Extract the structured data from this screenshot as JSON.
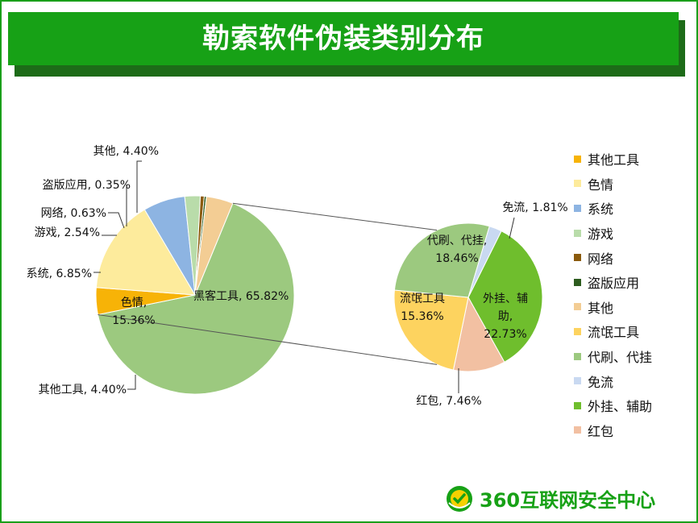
{
  "title": "勒索软件伪装类别分布",
  "brand": {
    "name": "360互联网安全中心",
    "logo_icon": "360-shield-logo-icon"
  },
  "chart_data": [
    {
      "type": "pie",
      "title": "",
      "slices": [
        {
          "name": "黑客工具",
          "value": 65.82,
          "label": "黑客工具, 65.82%",
          "color": "#9cc97f"
        },
        {
          "name": "其他工具",
          "value": 4.4,
          "label": "其他工具, 4.40%",
          "color": "#f7b307"
        },
        {
          "name": "色情",
          "value": 15.36,
          "label": "色情, 15.36%",
          "color": "#fdeb9c"
        },
        {
          "name": "系统",
          "value": 6.85,
          "label": "系统, 6.85%",
          "color": "#8db4e2"
        },
        {
          "name": "游戏",
          "value": 2.54,
          "label": "游戏, 2.54%",
          "color": "#b9dcaa"
        },
        {
          "name": "网络",
          "value": 0.63,
          "label": "网络, 0.63%",
          "color": "#8a5a0c"
        },
        {
          "name": "盗版应用",
          "value": 0.35,
          "label": "盗版应用, 0.35%",
          "color": "#2d5c1e"
        },
        {
          "name": "其他",
          "value": 4.4,
          "label": "其他, 4.40%",
          "color": "#f3cd94"
        }
      ]
    },
    {
      "type": "pie",
      "title": "",
      "breakdown_of": "黑客工具",
      "slices": [
        {
          "name": "外挂、辅助",
          "value": 22.73,
          "label": "外挂、辅助, 22.73%",
          "color": "#6fbe2d"
        },
        {
          "name": "红包",
          "value": 7.46,
          "label": "红包, 7.46%",
          "color": "#f2c0a2"
        },
        {
          "name": "流氓工具",
          "value": 15.36,
          "label": "流氓工具, 15.36%",
          "color": "#fdd35f"
        },
        {
          "name": "代刷、代挂",
          "value": 18.46,
          "label": "代刷、代挂, 18.46%",
          "color": "#9cc97f"
        },
        {
          "name": "免流",
          "value": 1.81,
          "label": "免流, 1.81%",
          "color": "#c9d9f1"
        }
      ]
    }
  ],
  "legend": {
    "placement": "right",
    "items": [
      {
        "label": "其他工具",
        "color": "#f7b307"
      },
      {
        "label": "色情",
        "color": "#fdeb9c"
      },
      {
        "label": "系统",
        "color": "#8db4e2"
      },
      {
        "label": "游戏",
        "color": "#b9dcaa"
      },
      {
        "label": "网络",
        "color": "#8a5a0c"
      },
      {
        "label": "盗版应用",
        "color": "#2d5c1e"
      },
      {
        "label": "其他",
        "color": "#f3cd94"
      },
      {
        "label": "流氓工具",
        "color": "#fdd35f"
      },
      {
        "label": "代刷、代挂",
        "color": "#9cc97f"
      },
      {
        "label": "免流",
        "color": "#c9d9f1"
      },
      {
        "label": "外挂、辅助",
        "color": "#6fbe2d"
      },
      {
        "label": "红包",
        "color": "#f2c0a2"
      }
    ]
  }
}
